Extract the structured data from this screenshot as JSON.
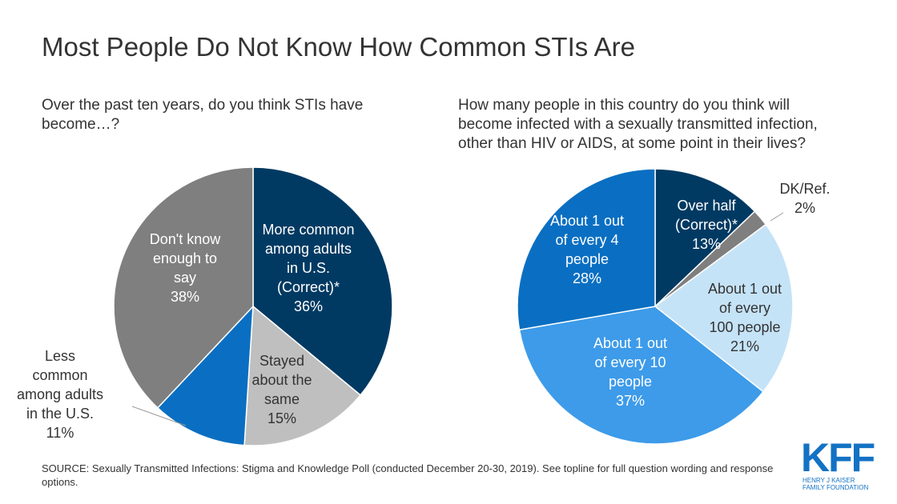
{
  "title": "Most People Do Not Know How Common STIs Are",
  "source": "SOURCE: Sexually Transmitted Infections: Stigma and Knowledge Poll (conducted December 20-30, 2019). See topline for full question wording and response options.",
  "logo": "KFF",
  "logo_subtitle": "HENRY J KAISER\nFAMILY FOUNDATION",
  "chart_data": [
    {
      "type": "pie",
      "subtitle": "Over the past ten years, do you think STIs have\nbecome…?",
      "categories": [
        "More common\namong adults\nin U.S.\n(Correct)*",
        "Stayed\nabout the\nsame",
        "Less\ncommon\namong adults\nin the U.S.",
        "Don't know\nenough to\nsay"
      ],
      "values": [
        36,
        15,
        11,
        38
      ],
      "value_labels": [
        "36%",
        "15%",
        "11%",
        "38%"
      ],
      "colors": [
        "#003a63",
        "#bfbfbf",
        "#0a6fc2",
        "#7f7f7f"
      ]
    },
    {
      "type": "pie",
      "subtitle": "How many people in this country do you think will\nbecome infected with a sexually transmitted infection,\nother than HIV or AIDS, at some point in their lives?",
      "categories": [
        "Over half\n(Correct)*",
        "DK/Ref.",
        "About 1 out\nof every\n100 people",
        "About 1 out\nof every 10\npeople",
        "About 1 out\nof every 4\npeople"
      ],
      "values": [
        13,
        2,
        21,
        37,
        28
      ],
      "value_labels": [
        "13%",
        "2%",
        "21%",
        "37%",
        "28%"
      ],
      "colors": [
        "#003a63",
        "#7f7f7f",
        "#c5e3f7",
        "#3d9be9",
        "#0a6fc2"
      ]
    }
  ]
}
